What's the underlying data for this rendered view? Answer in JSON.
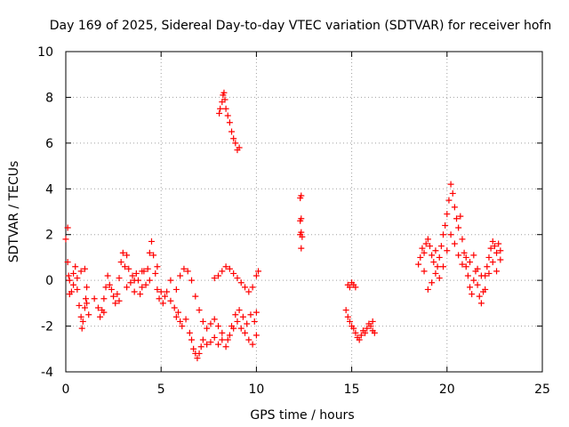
{
  "chart_data": {
    "type": "scatter",
    "title": "Day 169 of 2025, Sidereal Day-to-day VTEC variation (SDTVAR) for receiver hofn",
    "xlabel": "GPS time / hours",
    "ylabel": "SDTVAR / TECUs",
    "xlim": [
      0,
      25
    ],
    "ylim": [
      -4,
      10
    ],
    "xticks": [
      0,
      5,
      10,
      15,
      20,
      25
    ],
    "yticks": [
      -4,
      -2,
      0,
      2,
      4,
      6,
      8,
      10
    ],
    "xtick_labels": [
      "0",
      "5",
      "10",
      "15",
      "20",
      "25"
    ],
    "ytick_labels": [
      "-4",
      "-2",
      "0",
      "2",
      "4",
      "6",
      "8",
      "10"
    ],
    "grid": true,
    "marker": "+",
    "color": "#ff0000",
    "series": [
      {
        "name": "SDTVAR",
        "points": [
          [
            0.0,
            1.8
          ],
          [
            0.1,
            2.3
          ],
          [
            0.1,
            0.8
          ],
          [
            0.15,
            0.2
          ],
          [
            0.2,
            -0.6
          ],
          [
            0.3,
            -0.5
          ],
          [
            0.4,
            0.3
          ],
          [
            0.5,
            0.6
          ],
          [
            0.6,
            -0.4
          ],
          [
            0.7,
            -1.1
          ],
          [
            0.8,
            -1.6
          ],
          [
            0.85,
            -2.1
          ],
          [
            0.9,
            -1.8
          ],
          [
            1.0,
            -1.2
          ],
          [
            1.05,
            -0.8
          ],
          [
            1.1,
            -0.3
          ],
          [
            1.2,
            -1.5
          ],
          [
            0.2,
            0.0
          ],
          [
            0.4,
            -0.2
          ],
          [
            0.6,
            0.1
          ],
          [
            0.8,
            0.4
          ],
          [
            1.0,
            0.5
          ],
          [
            1.1,
            -1.0
          ],
          [
            1.5,
            -0.8
          ],
          [
            1.7,
            -1.2
          ],
          [
            1.8,
            -1.6
          ],
          [
            1.9,
            -1.3
          ],
          [
            2.0,
            -0.8
          ],
          [
            2.1,
            -0.3
          ],
          [
            2.2,
            0.2
          ],
          [
            2.3,
            -0.2
          ],
          [
            2.5,
            -0.7
          ],
          [
            2.6,
            -1.0
          ],
          [
            2.7,
            -0.6
          ],
          [
            2.8,
            0.1
          ],
          [
            2.9,
            0.8
          ],
          [
            3.0,
            1.2
          ],
          [
            3.1,
            0.6
          ],
          [
            3.2,
            1.1
          ],
          [
            3.3,
            0.5
          ],
          [
            3.4,
            -0.1
          ],
          [
            3.5,
            0.2
          ],
          [
            3.6,
            -0.5
          ],
          [
            3.7,
            0.3
          ],
          [
            3.8,
            0.0
          ],
          [
            3.9,
            -0.6
          ],
          [
            4.0,
            -0.3
          ],
          [
            4.1,
            0.4
          ],
          [
            4.2,
            -0.2
          ],
          [
            4.3,
            0.5
          ],
          [
            4.4,
            1.2
          ],
          [
            4.5,
            1.7
          ],
          [
            4.6,
            1.1
          ],
          [
            4.7,
            0.3
          ],
          [
            4.8,
            -0.4
          ],
          [
            4.9,
            -0.8
          ],
          [
            5.0,
            -0.5
          ],
          [
            5.1,
            -1.0
          ],
          [
            5.2,
            -0.7
          ],
          [
            2.0,
            -1.4
          ],
          [
            2.4,
            -0.4
          ],
          [
            2.8,
            -0.9
          ],
          [
            3.2,
            -0.3
          ],
          [
            3.6,
            0.0
          ],
          [
            4.0,
            0.4
          ],
          [
            4.4,
            0.0
          ],
          [
            4.8,
            0.6
          ],
          [
            5.3,
            -0.5
          ],
          [
            5.5,
            -0.9
          ],
          [
            5.7,
            -1.2
          ],
          [
            5.8,
            -1.6
          ],
          [
            5.9,
            -1.4
          ],
          [
            6.0,
            -1.8
          ],
          [
            6.1,
            -2.0
          ],
          [
            6.3,
            -1.7
          ],
          [
            6.5,
            -2.3
          ],
          [
            6.6,
            -2.6
          ],
          [
            6.7,
            -3.0
          ],
          [
            6.8,
            -3.2
          ],
          [
            6.9,
            -3.4
          ],
          [
            7.0,
            -3.2
          ],
          [
            7.1,
            -2.9
          ],
          [
            7.2,
            -2.6
          ],
          [
            7.4,
            -2.8
          ],
          [
            7.6,
            -2.7
          ],
          [
            7.8,
            -2.5
          ],
          [
            8.0,
            -2.8
          ],
          [
            8.2,
            -2.6
          ],
          [
            8.4,
            -2.9
          ],
          [
            8.6,
            -2.4
          ],
          [
            8.8,
            -2.1
          ],
          [
            9.0,
            -1.8
          ],
          [
            9.2,
            -2.1
          ],
          [
            9.4,
            -2.3
          ],
          [
            9.6,
            -2.6
          ],
          [
            9.8,
            -2.8
          ],
          [
            10.0,
            -2.4
          ],
          [
            5.5,
            0.0
          ],
          [
            5.8,
            -0.4
          ],
          [
            6.0,
            0.2
          ],
          [
            6.2,
            0.5
          ],
          [
            6.4,
            0.4
          ],
          [
            6.6,
            0.0
          ],
          [
            6.8,
            -0.7
          ],
          [
            7.0,
            -1.3
          ],
          [
            7.2,
            -1.8
          ],
          [
            7.4,
            -2.1
          ],
          [
            7.6,
            -1.9
          ],
          [
            7.8,
            -1.7
          ],
          [
            8.0,
            -2.0
          ],
          [
            8.2,
            -2.3
          ],
          [
            8.5,
            -2.6
          ],
          [
            8.7,
            -2.0
          ],
          [
            8.9,
            -1.5
          ],
          [
            9.1,
            -1.3
          ],
          [
            9.3,
            -1.6
          ],
          [
            9.5,
            -1.9
          ],
          [
            9.7,
            -1.5
          ],
          [
            9.9,
            -1.8
          ],
          [
            10.0,
            -1.4
          ],
          [
            7.8,
            0.1
          ],
          [
            8.0,
            0.2
          ],
          [
            8.2,
            0.4
          ],
          [
            8.4,
            0.6
          ],
          [
            8.6,
            0.5
          ],
          [
            8.8,
            0.3
          ],
          [
            9.0,
            0.1
          ],
          [
            9.2,
            -0.1
          ],
          [
            9.4,
            -0.3
          ],
          [
            9.6,
            -0.5
          ],
          [
            9.8,
            -0.3
          ],
          [
            10.0,
            0.2
          ],
          [
            10.1,
            0.4
          ],
          [
            8.1,
            7.5
          ],
          [
            8.2,
            7.8
          ],
          [
            8.25,
            8.1
          ],
          [
            8.3,
            8.2
          ],
          [
            8.35,
            7.9
          ],
          [
            8.4,
            7.5
          ],
          [
            8.5,
            7.2
          ],
          [
            8.6,
            6.9
          ],
          [
            8.7,
            6.5
          ],
          [
            8.8,
            6.2
          ],
          [
            8.9,
            6.0
          ],
          [
            9.0,
            5.7
          ],
          [
            9.1,
            5.8
          ],
          [
            8.05,
            7.3
          ],
          [
            12.3,
            3.6
          ],
          [
            12.35,
            3.7
          ],
          [
            12.3,
            2.6
          ],
          [
            12.35,
            2.7
          ],
          [
            12.3,
            2.0
          ],
          [
            12.35,
            2.1
          ],
          [
            12.4,
            1.9
          ],
          [
            12.35,
            1.4
          ],
          [
            14.7,
            -1.3
          ],
          [
            14.8,
            -1.6
          ],
          [
            14.9,
            -1.8
          ],
          [
            15.0,
            -2.0
          ],
          [
            15.1,
            -2.1
          ],
          [
            15.2,
            -2.3
          ],
          [
            15.3,
            -2.5
          ],
          [
            15.4,
            -2.6
          ],
          [
            15.5,
            -2.4
          ],
          [
            15.6,
            -2.2
          ],
          [
            15.7,
            -2.3
          ],
          [
            15.8,
            -2.1
          ],
          [
            15.9,
            -1.9
          ],
          [
            16.0,
            -2.0
          ],
          [
            16.1,
            -2.2
          ],
          [
            16.2,
            -2.3
          ],
          [
            16.1,
            -1.8
          ],
          [
            14.8,
            -0.2
          ],
          [
            14.9,
            -0.3
          ],
          [
            15.0,
            -0.1
          ],
          [
            15.1,
            -0.2
          ],
          [
            15.2,
            -0.3
          ],
          [
            18.5,
            0.7
          ],
          [
            18.6,
            1.0
          ],
          [
            18.7,
            1.4
          ],
          [
            18.8,
            1.2
          ],
          [
            18.9,
            1.6
          ],
          [
            19.0,
            1.8
          ],
          [
            19.1,
            1.5
          ],
          [
            19.2,
            1.1
          ],
          [
            19.3,
            0.8
          ],
          [
            19.4,
            0.3
          ],
          [
            19.5,
            0.6
          ],
          [
            19.6,
            1.0
          ],
          [
            19.7,
            1.5
          ],
          [
            19.8,
            2.0
          ],
          [
            19.9,
            2.4
          ],
          [
            20.0,
            2.9
          ],
          [
            20.1,
            3.5
          ],
          [
            20.2,
            4.2
          ],
          [
            20.3,
            3.8
          ],
          [
            20.4,
            3.2
          ],
          [
            20.5,
            2.7
          ],
          [
            20.6,
            2.3
          ],
          [
            20.7,
            2.8
          ],
          [
            20.8,
            1.8
          ],
          [
            20.9,
            1.2
          ],
          [
            21.0,
            0.6
          ],
          [
            21.1,
            0.2
          ],
          [
            21.2,
            -0.3
          ],
          [
            21.3,
            -0.6
          ],
          [
            21.4,
            0.0
          ],
          [
            21.5,
            0.4
          ],
          [
            21.6,
            -0.2
          ],
          [
            21.7,
            -0.7
          ],
          [
            21.8,
            -1.0
          ],
          [
            21.9,
            -0.5
          ],
          [
            22.0,
            0.2
          ],
          [
            22.1,
            0.6
          ],
          [
            22.2,
            1.0
          ],
          [
            22.3,
            1.4
          ],
          [
            22.4,
            1.7
          ],
          [
            22.5,
            1.5
          ],
          [
            22.6,
            1.2
          ],
          [
            22.7,
            1.6
          ],
          [
            22.8,
            1.3
          ],
          [
            18.8,
            0.4
          ],
          [
            19.0,
            -0.4
          ],
          [
            19.2,
            -0.1
          ],
          [
            19.4,
            1.3
          ],
          [
            19.6,
            0.1
          ],
          [
            19.8,
            0.6
          ],
          [
            20.0,
            1.3
          ],
          [
            20.2,
            2.0
          ],
          [
            20.4,
            1.6
          ],
          [
            20.6,
            1.1
          ],
          [
            20.8,
            0.7
          ],
          [
            21.0,
            1.0
          ],
          [
            21.2,
            0.8
          ],
          [
            21.4,
            1.1
          ],
          [
            21.6,
            0.5
          ],
          [
            21.8,
            0.2
          ],
          [
            22.0,
            -0.4
          ],
          [
            22.2,
            0.3
          ],
          [
            22.4,
            0.8
          ],
          [
            22.6,
            0.4
          ],
          [
            22.8,
            0.9
          ]
        ]
      }
    ]
  }
}
